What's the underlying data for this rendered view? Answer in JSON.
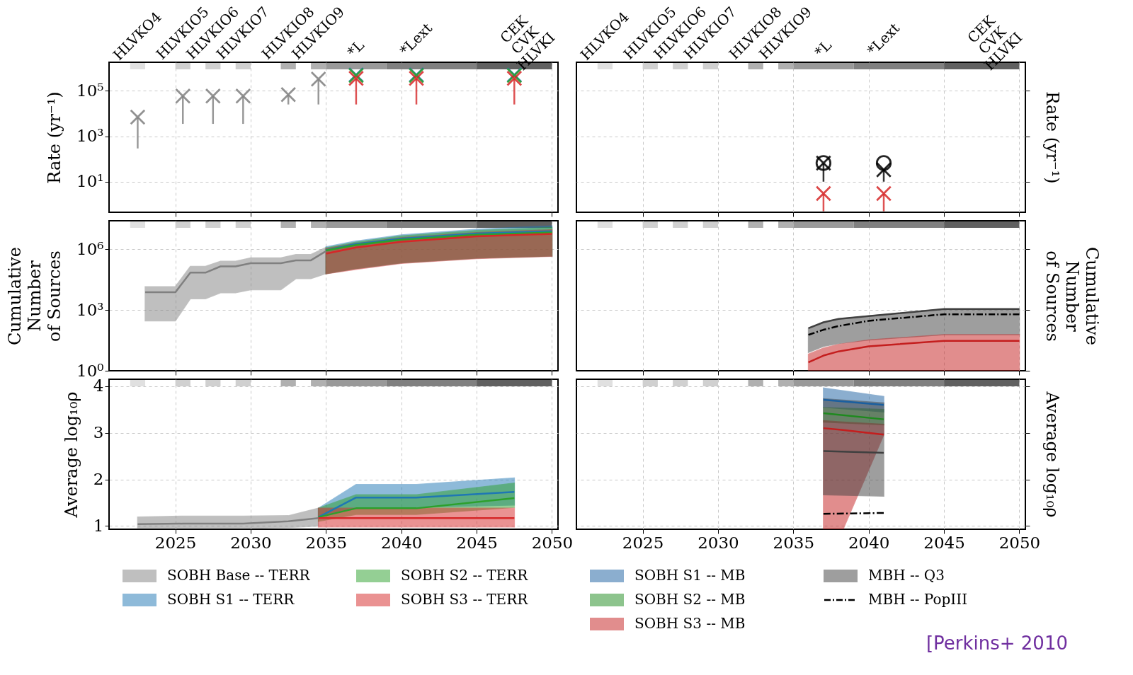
{
  "chart_data": [
    {
      "type": "scatter",
      "xlim": [
        2020.6,
        2050.4
      ],
      "xticks": [
        2025,
        2030,
        2035,
        2040,
        2045,
        2050
      ],
      "annotations": [
        "HLVKO4",
        "HLVKIO5",
        "HLVKIO6",
        "HLVKIO7",
        "HLVKIO8",
        "HLVKIO9",
        "*L",
        "*Lext",
        "CEK\nCVK\nHLVKI"
      ],
      "ylim": [
        0.45,
        1800000
      ],
      "yticks": [
        {
          "value": 10,
          "label": "10¹"
        },
        {
          "value": 1000,
          "label": "10³"
        },
        {
          "value": 100000,
          "label": "10⁵"
        }
      ],
      "log": true,
      "ylabel": "Rate (yr⁻¹)",
      "grid": true,
      "tick_labels": "y",
      "marker": "cross",
      "bands": [
        {
          "axis": "x",
          "from": 2022,
          "to": 2023,
          "color": "#e0e0e0"
        },
        {
          "axis": "x",
          "from": 2025,
          "to": 2026,
          "color": "#d0d0d0"
        },
        {
          "axis": "x",
          "from": 2027,
          "to": 2028,
          "color": "#d0d0d0"
        },
        {
          "axis": "x",
          "from": 2029,
          "to": 2030,
          "color": "#d0d0d0"
        },
        {
          "axis": "x",
          "from": 2032,
          "to": 2033,
          "color": "#b0b0b0"
        },
        {
          "axis": "x",
          "from": 2034,
          "to": 2035,
          "color": "#b0b0b0"
        },
        {
          "axis": "x",
          "from": 2035,
          "to": 2039,
          "color": "#999999"
        },
        {
          "axis": "x",
          "from": 2039,
          "to": 2045,
          "color": "#808080"
        },
        {
          "axis": "x",
          "from": 2045,
          "to": 2050,
          "color": "#606060"
        }
      ],
      "series": [
        {
          "color": "#808080",
          "x": [
            2022.5,
            2025.5,
            2027.5,
            2029.5,
            2032.5,
            2034.5
          ],
          "values": [
            6900,
            59000,
            59000,
            59000,
            68000,
            330000
          ],
          "errors": [
            [
              290,
              6900
            ],
            [
              3500,
              59000
            ],
            [
              3500,
              59000
            ],
            [
              3500,
              59000
            ],
            [
              25000,
              68000
            ],
            [
              25000,
              330000
            ]
          ]
        },
        {
          "color": "#1f77b4",
          "x": [
            2037,
            2041,
            2047.5
          ],
          "values": [
            500000,
            500000,
            500000
          ]
        },
        {
          "color": "#2ca02c",
          "x": [
            2037,
            2041,
            2047.5
          ],
          "values": [
            470000,
            470000,
            470000
          ]
        },
        {
          "color": "#d62728",
          "x": [
            2037,
            2041,
            2047.5
          ],
          "values": [
            350000,
            350000,
            350000
          ],
          "errors": [
            [
              25000,
              350000
            ],
            [
              25000,
              350000
            ],
            [
              25000,
              350000
            ]
          ]
        }
      ]
    },
    {
      "type": "scatter",
      "xlim": [
        2020.6,
        2050.4
      ],
      "xticks": [
        2025,
        2030,
        2035,
        2040,
        2045,
        2050
      ],
      "annotations": [
        "HLVKO4",
        "HLVKIO5",
        "HLVKIO6",
        "HLVKIO7",
        "HLVKIO8",
        "HLVKIO9",
        "*L",
        "*Lext",
        "CEK\nCVK\nHLVKI"
      ],
      "ylim": [
        0.45,
        1800000
      ],
      "yticks": [
        {
          "value": 10,
          "label": null
        },
        {
          "value": 1000,
          "label": null
        },
        {
          "value": 100000,
          "label": null
        }
      ],
      "log": true,
      "ylabel": "Rate (yr⁻¹)",
      "grid": true,
      "tick_labels": false,
      "marker": "cross",
      "bands": [
        {
          "axis": "x",
          "from": 2022,
          "to": 2023,
          "color": "#e0e0e0"
        },
        {
          "axis": "x",
          "from": 2025,
          "to": 2026,
          "color": "#d0d0d0"
        },
        {
          "axis": "x",
          "from": 2027,
          "to": 2028,
          "color": "#d0d0d0"
        },
        {
          "axis": "x",
          "from": 2029,
          "to": 2030,
          "color": "#d0d0d0"
        },
        {
          "axis": "x",
          "from": 2032,
          "to": 2033,
          "color": "#b0b0b0"
        },
        {
          "axis": "x",
          "from": 2034,
          "to": 2035,
          "color": "#b0b0b0"
        },
        {
          "axis": "x",
          "from": 2035,
          "to": 2039,
          "color": "#999999"
        },
        {
          "axis": "x",
          "from": 2039,
          "to": 2045,
          "color": "#808080"
        },
        {
          "axis": "x",
          "from": 2045,
          "to": 2050,
          "color": "#606060"
        }
      ],
      "series": [
        {
          "color": "#000000",
          "x": [
            2037,
            2041
          ],
          "values": [
            66,
            33
          ],
          "errors": [
            [
              10,
              66
            ],
            [
              10,
              33
            ]
          ]
        },
        {
          "color": "#000000",
          "marker": "circle",
          "x": [
            2037,
            2041
          ],
          "values": [
            66,
            66
          ]
        },
        {
          "color": "#d62728",
          "x": [
            2037,
            2041
          ],
          "values": [
            3,
            3
          ],
          "errors": [
            [
              0.5,
              3
            ],
            [
              0.5,
              3
            ]
          ]
        }
      ]
    },
    {
      "type": "line",
      "xlim": [
        2020.6,
        2050.4
      ],
      "xticks": [
        2025,
        2030,
        2035,
        2040,
        2045,
        2050
      ],
      "ylim": [
        1,
        25000000
      ],
      "yticks": [
        {
          "value": 1,
          "label": "10⁰"
        },
        {
          "value": 1000,
          "label": "10³"
        },
        {
          "value": 1000000,
          "label": "10⁶"
        }
      ],
      "log": true,
      "ylabel": "Cumulative\nNumber\nof Sources",
      "grid": true,
      "tick_labels": "y",
      "bands": [
        {
          "axis": "x",
          "from": 2022,
          "to": 2023,
          "color": "#e0e0e0"
        },
        {
          "axis": "x",
          "from": 2025,
          "to": 2026,
          "color": "#d0d0d0"
        },
        {
          "axis": "x",
          "from": 2027,
          "to": 2028,
          "color": "#d0d0d0"
        },
        {
          "axis": "x",
          "from": 2029,
          "to": 2030,
          "color": "#d0d0d0"
        },
        {
          "axis": "x",
          "from": 2032,
          "to": 2033,
          "color": "#b0b0b0"
        },
        {
          "axis": "x",
          "from": 2034,
          "to": 2035,
          "color": "#b0b0b0"
        },
        {
          "axis": "x",
          "from": 2035,
          "to": 2039,
          "color": "#999999"
        },
        {
          "axis": "x",
          "from": 2039,
          "to": 2045,
          "color": "#808080"
        },
        {
          "axis": "x",
          "from": 2045,
          "to": 2050,
          "color": "#606060"
        }
      ],
      "series": [
        {
          "color": "#808080",
          "x": [
            2023,
            2025,
            2026,
            2027,
            2028,
            2029,
            2030,
            2032,
            2033,
            2034,
            2035
          ],
          "values": [
            7400,
            7400,
            69000,
            69000,
            140000,
            140000,
            200000,
            200000,
            280000,
            280000,
            800000
          ],
          "upper": [
            14000,
            14000,
            140000,
            140000,
            250000,
            250000,
            370000,
            370000,
            540000,
            540000,
            1200000
          ],
          "lower": [
            290,
            290,
            3600,
            3600,
            7100,
            7100,
            10000,
            10000,
            35000,
            35000,
            62000
          ]
        },
        {
          "color": "#1f77b4",
          "x": [
            2035,
            2037,
            2040,
            2045,
            2050
          ],
          "values": [
            900000,
            1800000,
            3300000,
            5900000,
            7600000
          ],
          "upper": [
            1300000,
            2500000,
            5000000,
            9500000,
            14000000
          ],
          "lower": [
            62000,
            110000,
            210000,
            360000,
            460000
          ]
        },
        {
          "color": "#2ca02c",
          "x": [
            2035,
            2037,
            2040,
            2045,
            2050
          ],
          "values": [
            850000,
            1600000,
            2900000,
            5100000,
            6600000
          ],
          "upper": [
            1150000,
            2200000,
            4400000,
            8300000,
            11500000
          ],
          "lower": [
            62000,
            110000,
            210000,
            360000,
            460000
          ]
        },
        {
          "color": "#d62728",
          "x": [
            2035,
            2037,
            2040,
            2045,
            2050
          ],
          "values": [
            600000,
            1200000,
            2300000,
            4300000,
            5600000
          ],
          "upper": [
            1050000,
            1900000,
            3600000,
            6500000,
            8900000
          ],
          "lower": [
            60000,
            100000,
            200000,
            340000,
            440000
          ]
        }
      ]
    },
    {
      "type": "line",
      "xlim": [
        2020.6,
        2050.4
      ],
      "xticks": [
        2025,
        2030,
        2035,
        2040,
        2045,
        2050
      ],
      "ylim": [
        1,
        25000000
      ],
      "yticks": [
        {
          "value": 1,
          "label": null
        },
        {
          "value": 1000,
          "label": null
        },
        {
          "value": 1000000,
          "label": null
        }
      ],
      "log": true,
      "ylabel": "Cumulative\nNumber\nof Sources",
      "grid": true,
      "tick_labels": false,
      "bands": [
        {
          "axis": "x",
          "from": 2022,
          "to": 2023,
          "color": "#e0e0e0"
        },
        {
          "axis": "x",
          "from": 2025,
          "to": 2026,
          "color": "#d0d0d0"
        },
        {
          "axis": "x",
          "from": 2027,
          "to": 2028,
          "color": "#d0d0d0"
        },
        {
          "axis": "x",
          "from": 2029,
          "to": 2030,
          "color": "#d0d0d0"
        },
        {
          "axis": "x",
          "from": 2032,
          "to": 2033,
          "color": "#b0b0b0"
        },
        {
          "axis": "x",
          "from": 2034,
          "to": 2035,
          "color": "#b0b0b0"
        },
        {
          "axis": "x",
          "from": 2035,
          "to": 2039,
          "color": "#999999"
        },
        {
          "axis": "x",
          "from": 2039,
          "to": 2045,
          "color": "#808080"
        },
        {
          "axis": "x",
          "from": 2045,
          "to": 2050,
          "color": "#606060"
        }
      ],
      "series": [
        {
          "color": "#404040",
          "x": [
            2036,
            2037,
            2038,
            2040,
            2045,
            2050
          ],
          "values": [
            125,
            245,
            360,
            500,
            1100,
            1100
          ],
          "upper": [
            125,
            245,
            360,
            500,
            1100,
            1100
          ],
          "lower": [
            8,
            16,
            22,
            33,
            60,
            60
          ]
        },
        {
          "line_style": "dashdot",
          "color": "#000000",
          "x": [
            2036,
            2037,
            2038,
            2040,
            2045,
            2050
          ],
          "values": [
            59,
            105,
            160,
            290,
            610,
            610
          ]
        },
        {
          "color": "#c41e1e",
          "x": [
            2036,
            2037,
            2038,
            2040,
            2045,
            2050
          ],
          "values": [
            2.6,
            5.6,
            9,
            16,
            30,
            30
          ],
          "upper": [
            6.6,
            13,
            20,
            33,
            60,
            60
          ],
          "lower": [
            1,
            1,
            1,
            1,
            1,
            1
          ]
        }
      ]
    },
    {
      "type": "line",
      "xlim": [
        2020.6,
        2050.4
      ],
      "xticks": [
        2025,
        2030,
        2035,
        2040,
        2045,
        2050
      ],
      "ylim": [
        0.93,
        4.15
      ],
      "yticks": [
        1,
        2,
        3,
        4
      ],
      "ylabel": "Average log₁₀ρ",
      "grid": true,
      "legend": "bottom",
      "bands": [
        {
          "axis": "x",
          "from": 2022,
          "to": 2023,
          "color": "#e0e0e0"
        },
        {
          "axis": "x",
          "from": 2025,
          "to": 2026,
          "color": "#d0d0d0"
        },
        {
          "axis": "x",
          "from": 2027,
          "to": 2028,
          "color": "#d0d0d0"
        },
        {
          "axis": "x",
          "from": 2029,
          "to": 2030,
          "color": "#d0d0d0"
        },
        {
          "axis": "x",
          "from": 2032,
          "to": 2033,
          "color": "#b0b0b0"
        },
        {
          "axis": "x",
          "from": 2034,
          "to": 2035,
          "color": "#b0b0b0"
        },
        {
          "axis": "x",
          "from": 2035,
          "to": 2039,
          "color": "#999999"
        },
        {
          "axis": "x",
          "from": 2039,
          "to": 2045,
          "color": "#808080"
        },
        {
          "axis": "x",
          "from": 2045,
          "to": 2050,
          "color": "#606060"
        }
      ],
      "series": [
        {
          "name": "SOBH Base -- TERR",
          "color": "#808080",
          "x": [
            2022.5,
            2025.5,
            2027.5,
            2029.5,
            2032.5,
            2034.5
          ],
          "values": [
            1.04,
            1.05,
            1.05,
            1.05,
            1.1,
            1.17
          ],
          "upper": [
            1.19,
            1.21,
            1.21,
            1.21,
            1.22,
            1.38
          ],
          "lower": [
            0.95,
            0.95,
            0.95,
            0.95,
            0.97,
            1.0
          ]
        },
        {
          "name": "SOBH S1 -- TERR",
          "color": "#1f77b4",
          "x": [
            2034.5,
            2037,
            2041,
            2047.5
          ],
          "values": [
            1.19,
            1.61,
            1.61,
            1.73
          ],
          "upper": [
            1.38,
            1.89,
            1.89,
            2.03
          ],
          "lower": [
            1.2,
            1.4,
            1.4,
            1.45
          ]
        },
        {
          "name": "SOBH S2 -- TERR",
          "color": "#2ca02c",
          "x": [
            2034.5,
            2037,
            2041,
            2047.5
          ],
          "values": [
            1.19,
            1.38,
            1.38,
            1.6
          ],
          "upper": [
            1.38,
            1.67,
            1.67,
            1.92
          ],
          "lower": [
            1.1,
            1.25,
            1.25,
            1.4
          ]
        },
        {
          "name": "SOBH S3 -- TERR",
          "color": "#d62728",
          "x": [
            2034.5,
            2037,
            2041,
            2047.5
          ],
          "values": [
            1.17,
            1.17,
            1.17,
            1.17
          ],
          "upper": [
            1.38,
            1.38,
            1.38,
            1.38
          ],
          "lower": [
            0.98,
            0.98,
            0.98,
            0.98
          ]
        }
      ]
    },
    {
      "type": "line",
      "xlim": [
        2020.6,
        2050.4
      ],
      "xticks": [
        2025,
        2030,
        2035,
        2040,
        2045,
        2050
      ],
      "ylim": [
        0.93,
        4.15
      ],
      "yticks": [
        {
          "value": 1,
          "label": null
        },
        {
          "value": 2,
          "label": null
        },
        {
          "value": 3,
          "label": null
        },
        {
          "value": 4,
          "label": null
        }
      ],
      "ylabel": "Average log₁₀ρ",
      "grid": true,
      "legend": "bottom",
      "tick_labels": "x",
      "annotations": [
        "[Perkins+ 2010"
      ],
      "bands": [
        {
          "axis": "x",
          "from": 2022,
          "to": 2023,
          "color": "#e0e0e0"
        },
        {
          "axis": "x",
          "from": 2025,
          "to": 2026,
          "color": "#d0d0d0"
        },
        {
          "axis": "x",
          "from": 2027,
          "to": 2028,
          "color": "#d0d0d0"
        },
        {
          "axis": "x",
          "from": 2029,
          "to": 2030,
          "color": "#d0d0d0"
        },
        {
          "axis": "x",
          "from": 2032,
          "to": 2033,
          "color": "#b0b0b0"
        },
        {
          "axis": "x",
          "from": 2034,
          "to": 2035,
          "color": "#b0b0b0"
        },
        {
          "axis": "x",
          "from": 2035,
          "to": 2039,
          "color": "#999999"
        },
        {
          "axis": "x",
          "from": 2039,
          "to": 2045,
          "color": "#808080"
        },
        {
          "axis": "x",
          "from": 2045,
          "to": 2050,
          "color": "#606060"
        }
      ],
      "series": [
        {
          "name": "SOBH S1 -- MB",
          "color": "#1a5fa0",
          "x": [
            2037,
            2041
          ],
          "values": [
            3.71,
            3.6
          ],
          "upper": [
            3.96,
            3.78
          ],
          "lower": [
            3.55,
            3.45
          ]
        },
        {
          "name": "SOBH S2 -- MB",
          "color": "#1e8a1e",
          "x": [
            2037,
            2041
          ],
          "values": [
            3.42,
            3.29
          ],
          "upper": [
            3.54,
            3.5
          ],
          "lower": [
            3.23,
            3.17
          ]
        },
        {
          "name": "SOBH S3 -- MB",
          "color": "#c41e1e",
          "x": [
            2037,
            2038.3,
            2041
          ],
          "values": [
            3.1,
            3.06,
            2.96
          ],
          "upper": [
            3.26,
            3.23,
            3.18
          ],
          "lower": [
            0.93,
            0.93,
            2.96
          ]
        },
        {
          "name": "MBH -- Q3",
          "color": "#404040",
          "x": [
            2037,
            2041
          ],
          "values": [
            2.61,
            2.57
          ],
          "upper": [
            3.73,
            3.64
          ],
          "lower": [
            1.67,
            1.64
          ]
        },
        {
          "name": "MBH -- PopIII",
          "line_style": "dashdot",
          "color": "#000000",
          "x": [
            2037,
            2041
          ],
          "values": [
            1.26,
            1.28
          ]
        }
      ]
    }
  ]
}
